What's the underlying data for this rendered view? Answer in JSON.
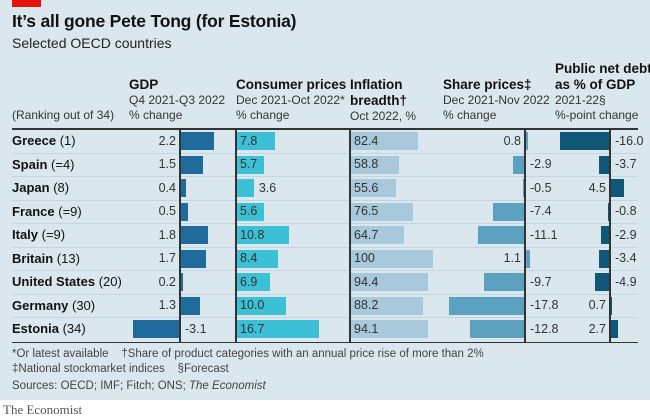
{
  "title": "It’s all gone Pete Tong (for Estonia)",
  "subtitle": "Selected OECD countries",
  "ranking_label": "(Ranking out of 34)",
  "colors": {
    "accent": "#e3120b",
    "gdp": "#1f6b9c",
    "cpi": "#3cc0d6",
    "breadth": "#a7c9db",
    "share": "#5da1c0",
    "debt": "#0f5677",
    "background": "#dbe7ef"
  },
  "chart_data": {
    "type": "table",
    "title": "It’s all gone Pete Tong (for Estonia)",
    "subtitle": "Selected OECD countries",
    "rows": [
      {
        "country": "Greece",
        "rank": "(1)"
      },
      {
        "country": "Spain",
        "rank": "(=4)"
      },
      {
        "country": "Japan",
        "rank": "(8)"
      },
      {
        "country": "France",
        "rank": "(=9)"
      },
      {
        "country": "Italy",
        "rank": "(=9)"
      },
      {
        "country": "Britain",
        "rank": "(13)"
      },
      {
        "country": "United States",
        "rank": "(20)"
      },
      {
        "country": "Germany",
        "rank": "(30)"
      },
      {
        "country": "Estonia",
        "rank": "(34)"
      }
    ],
    "columns": [
      {
        "key": "gdp",
        "title": "GDP",
        "sub1": "Q4 2021-Q3 2022",
        "sub2": "% change",
        "values": [
          2.2,
          1.5,
          0.4,
          0.5,
          1.8,
          1.7,
          0.2,
          1.3,
          -3.1
        ],
        "labels": [
          "2.2",
          "1.5",
          "0.4",
          "0.5",
          "1.8",
          "1.7",
          "0.2",
          "1.3",
          "-3.1"
        ]
      },
      {
        "key": "cpi",
        "title": "Consumer prices",
        "sub1": "Dec 2021-Oct 2022*",
        "sub2": "% change",
        "values": [
          7.8,
          5.7,
          3.6,
          5.6,
          10.8,
          8.4,
          6.9,
          10.0,
          16.7
        ],
        "labels": [
          "7.8",
          "5.7",
          "3.6",
          "5.6",
          "10.8",
          "8.4",
          "6.9",
          "10.0",
          "16.7"
        ]
      },
      {
        "key": "breadth",
        "title": "Inflation breadth†",
        "sub1": "",
        "sub2": "Oct 2022, %",
        "values": [
          82.4,
          58.8,
          55.6,
          76.5,
          64.7,
          100,
          94.4,
          88.2,
          94.1
        ],
        "labels": [
          "82.4",
          "58.8",
          "55.6",
          "76.5",
          "64.7",
          "100",
          "94.4",
          "88.2",
          "94.1"
        ]
      },
      {
        "key": "share",
        "title": "Share prices‡",
        "sub1": "Dec 2021-Nov 2022",
        "sub2": "% change",
        "values": [
          0.8,
          -2.9,
          -0.5,
          -7.4,
          -11.1,
          1.1,
          -9.7,
          -17.8,
          -12.8
        ],
        "labels": [
          "0.8",
          "-2.9",
          "-0.5",
          "-7.4",
          "-11.1",
          "1.1",
          "-9.7",
          "-17.8",
          "-12.8"
        ]
      },
      {
        "key": "debt",
        "title": "Public net debt as % of GDP",
        "sub1": "2021-22§",
        "sub2": "%-point change",
        "values": [
          -16.0,
          -3.7,
          4.5,
          -0.8,
          -2.9,
          -3.4,
          -4.9,
          0.7,
          2.7
        ],
        "labels": [
          "-16.0",
          "-3.7",
          "4.5",
          "-0.8",
          "-2.9",
          "-3.4",
          "-4.9",
          "0.7",
          "2.7"
        ]
      }
    ]
  },
  "headers": {
    "gdp": {
      "title": "GDP",
      "sub1": "Q4 2021-Q3 2022",
      "sub2": "% change"
    },
    "cpi": {
      "title": "Consumer prices",
      "sub1": "Dec 2021-Oct 2022*",
      "sub2": "% change"
    },
    "breadth": {
      "title1": "Inflation",
      "title2": "breadth†",
      "sub2": "Oct 2022, %"
    },
    "share": {
      "title": "Share prices‡",
      "sub1": "Dec 2021-Nov 2022",
      "sub2": "% change"
    },
    "debt": {
      "title1": "Public net debt",
      "title2": "as % of GDP",
      "sub1": "2021-22§",
      "sub2": "%-point change"
    }
  },
  "notes": {
    "line1a": "*Or latest available",
    "line1b": "†Share of product categories with an annual price rise of more than 2%",
    "line2a": "‡National stockmarket indices",
    "line2b": "§Forecast",
    "sources": "Sources: OECD; IMF; Fitch; ONS;",
    "sources_italic": "The Economist"
  },
  "brand": "The Economist"
}
